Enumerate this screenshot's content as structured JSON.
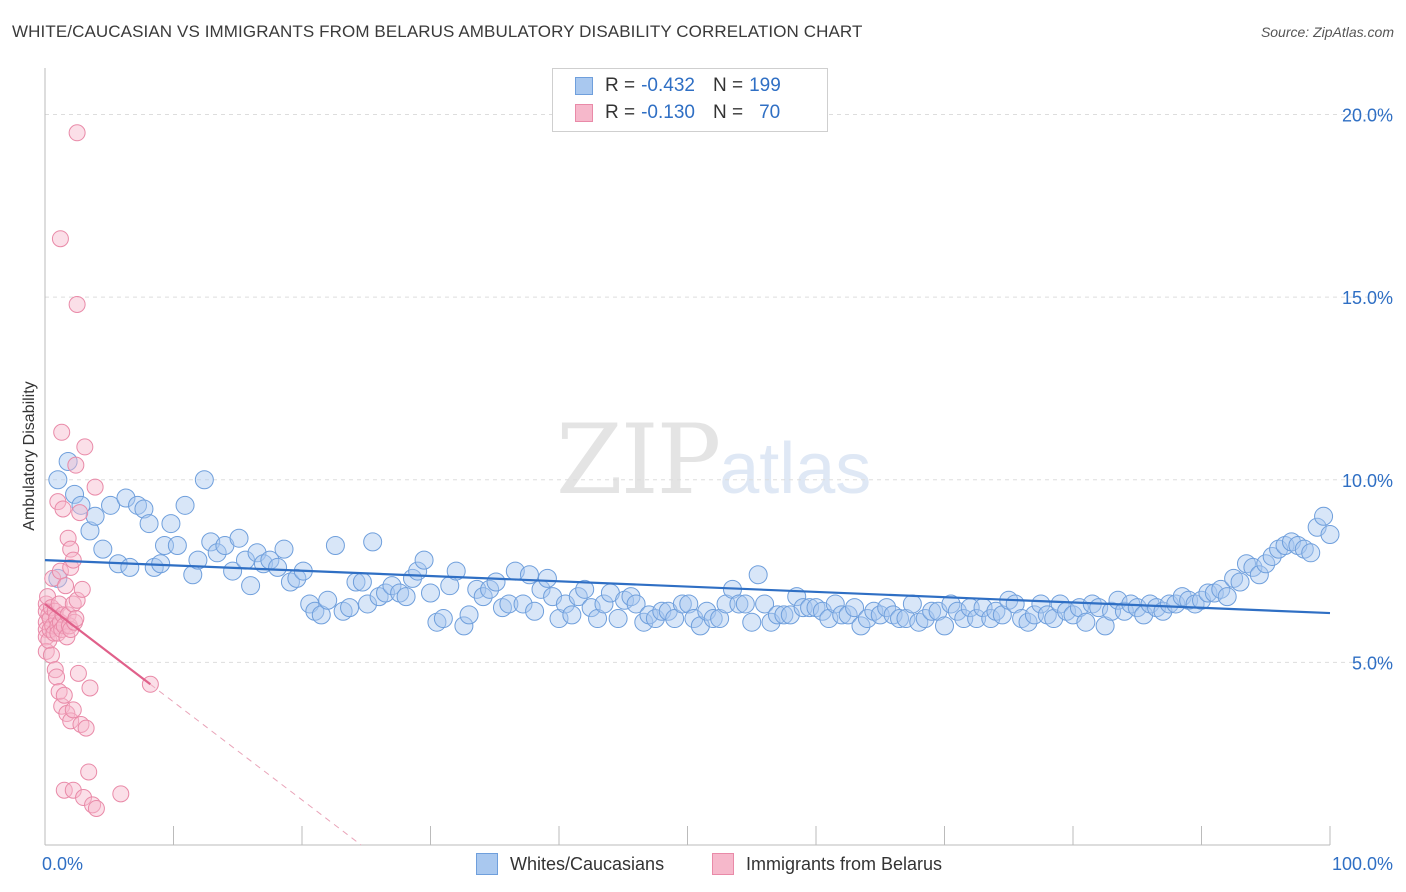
{
  "title": "WHITE/CAUCASIAN VS IMMIGRANTS FROM BELARUS AMBULATORY DISABILITY CORRELATION CHART",
  "source": "Source: ZipAtlas.com",
  "watermark": {
    "zip": "ZIP",
    "atlas": "atlas"
  },
  "legend": {
    "rows": [
      {
        "r_label": "R =",
        "r_value": "-0.432",
        "n_label": "N =",
        "n_value": "199"
      },
      {
        "r_label": "R =",
        "r_value": "-0.130",
        "n_label": "N =",
        "n_value": "70"
      }
    ]
  },
  "colors": {
    "blue_fill": "#a9c8ef",
    "blue_stroke": "#6f9fdc",
    "blue_line": "#2f6fc4",
    "pink_fill": "#f6b8cb",
    "pink_stroke": "#e98aa8",
    "pink_line": "#e0608a",
    "axis_text": "#2f6fc4",
    "grid": "#dddddd"
  },
  "chart_data": {
    "type": "scatter",
    "title": "WHITE/CAUCASIAN VS IMMIGRANTS FROM BELARUS AMBULATORY DISABILITY CORRELATION CHART",
    "xlabel": "",
    "ylabel": "Ambulatory Disability",
    "xlim": [
      0,
      100
    ],
    "ylim": [
      0,
      21
    ],
    "x_tick_labels": [
      "0.0%",
      "100.0%"
    ],
    "y_ticks": [
      5,
      10,
      15,
      20
    ],
    "y_tick_labels": [
      "5.0%",
      "10.0%",
      "15.0%",
      "20.0%"
    ],
    "series": [
      {
        "name": "Whites/Caucasians",
        "r": -0.432,
        "n": 199,
        "trend": {
          "x": [
            0,
            100
          ],
          "y": [
            7.8,
            6.35
          ]
        },
        "points": [
          [
            1,
            7.3
          ],
          [
            1,
            10.0
          ],
          [
            1.8,
            10.5
          ],
          [
            2.3,
            9.6
          ],
          [
            2.8,
            9.3
          ],
          [
            3.5,
            8.6
          ],
          [
            3.9,
            9.0
          ],
          [
            4.5,
            8.1
          ],
          [
            5.1,
            9.3
          ],
          [
            5.7,
            7.7
          ],
          [
            6.3,
            9.5
          ],
          [
            6.6,
            7.6
          ],
          [
            7.2,
            9.3
          ],
          [
            7.7,
            9.2
          ],
          [
            8.1,
            8.8
          ],
          [
            8.5,
            7.6
          ],
          [
            9.0,
            7.7
          ],
          [
            9.3,
            8.2
          ],
          [
            9.8,
            8.8
          ],
          [
            10.3,
            8.2
          ],
          [
            10.9,
            9.3
          ],
          [
            11.5,
            7.4
          ],
          [
            11.9,
            7.8
          ],
          [
            12.4,
            10.0
          ],
          [
            12.9,
            8.3
          ],
          [
            13.4,
            8.0
          ],
          [
            14.0,
            8.2
          ],
          [
            14.6,
            7.5
          ],
          [
            15.1,
            8.4
          ],
          [
            15.6,
            7.8
          ],
          [
            16.0,
            7.1
          ],
          [
            16.5,
            8.0
          ],
          [
            17.0,
            7.7
          ],
          [
            17.5,
            7.8
          ],
          [
            18.1,
            7.6
          ],
          [
            18.6,
            8.1
          ],
          [
            19.1,
            7.2
          ],
          [
            19.6,
            7.3
          ],
          [
            20.1,
            7.5
          ],
          [
            20.6,
            6.6
          ],
          [
            21.0,
            6.4
          ],
          [
            21.5,
            6.3
          ],
          [
            22.0,
            6.7
          ],
          [
            22.6,
            8.2
          ],
          [
            23.2,
            6.4
          ],
          [
            23.7,
            6.5
          ],
          [
            24.2,
            7.2
          ],
          [
            24.7,
            7.2
          ],
          [
            25.1,
            6.6
          ],
          [
            25.5,
            8.3
          ],
          [
            26.0,
            6.8
          ],
          [
            26.5,
            6.9
          ],
          [
            27.0,
            7.1
          ],
          [
            27.6,
            6.9
          ],
          [
            28.1,
            6.8
          ],
          [
            28.6,
            7.3
          ],
          [
            29.0,
            7.5
          ],
          [
            29.5,
            7.8
          ],
          [
            30.0,
            6.9
          ],
          [
            30.5,
            6.1
          ],
          [
            31.0,
            6.2
          ],
          [
            31.5,
            7.1
          ],
          [
            32.0,
            7.5
          ],
          [
            32.6,
            6.0
          ],
          [
            33.0,
            6.3
          ],
          [
            33.6,
            7.0
          ],
          [
            34.1,
            6.8
          ],
          [
            34.6,
            7.0
          ],
          [
            35.1,
            7.2
          ],
          [
            35.6,
            6.5
          ],
          [
            36.1,
            6.6
          ],
          [
            36.6,
            7.5
          ],
          [
            37.2,
            6.6
          ],
          [
            37.7,
            7.4
          ],
          [
            38.1,
            6.4
          ],
          [
            38.6,
            7.0
          ],
          [
            39.1,
            7.3
          ],
          [
            39.5,
            6.8
          ],
          [
            40.0,
            6.2
          ],
          [
            40.5,
            6.6
          ],
          [
            41.0,
            6.3
          ],
          [
            41.5,
            6.8
          ],
          [
            42.0,
            7.0
          ],
          [
            42.5,
            6.5
          ],
          [
            43.0,
            6.2
          ],
          [
            43.5,
            6.6
          ],
          [
            44.0,
            6.9
          ],
          [
            44.6,
            6.2
          ],
          [
            45.1,
            6.7
          ],
          [
            45.6,
            6.8
          ],
          [
            46.0,
            6.6
          ],
          [
            46.6,
            6.1
          ],
          [
            47.0,
            6.3
          ],
          [
            47.5,
            6.2
          ],
          [
            48.0,
            6.4
          ],
          [
            48.5,
            6.4
          ],
          [
            49.0,
            6.2
          ],
          [
            49.6,
            6.6
          ],
          [
            50.1,
            6.6
          ],
          [
            50.5,
            6.2
          ],
          [
            51.0,
            6.0
          ],
          [
            51.5,
            6.4
          ],
          [
            52.0,
            6.2
          ],
          [
            52.5,
            6.2
          ],
          [
            53.0,
            6.6
          ],
          [
            53.5,
            7.0
          ],
          [
            54.0,
            6.6
          ],
          [
            54.5,
            6.6
          ],
          [
            55.0,
            6.1
          ],
          [
            55.5,
            7.4
          ],
          [
            56.0,
            6.6
          ],
          [
            56.5,
            6.1
          ],
          [
            57.0,
            6.3
          ],
          [
            57.5,
            6.3
          ],
          [
            58.0,
            6.3
          ],
          [
            58.5,
            6.8
          ],
          [
            59.0,
            6.5
          ],
          [
            59.5,
            6.5
          ],
          [
            60.0,
            6.5
          ],
          [
            60.5,
            6.4
          ],
          [
            61.0,
            6.2
          ],
          [
            61.5,
            6.6
          ],
          [
            62.0,
            6.3
          ],
          [
            62.5,
            6.3
          ],
          [
            63.0,
            6.5
          ],
          [
            63.5,
            6.0
          ],
          [
            64.0,
            6.2
          ],
          [
            64.5,
            6.4
          ],
          [
            65.0,
            6.3
          ],
          [
            65.5,
            6.5
          ],
          [
            66.0,
            6.3
          ],
          [
            66.5,
            6.2
          ],
          [
            67.0,
            6.2
          ],
          [
            67.5,
            6.6
          ],
          [
            68.0,
            6.1
          ],
          [
            68.5,
            6.2
          ],
          [
            69.0,
            6.4
          ],
          [
            69.5,
            6.4
          ],
          [
            70.0,
            6.0
          ],
          [
            70.5,
            6.6
          ],
          [
            71.0,
            6.4
          ],
          [
            71.5,
            6.2
          ],
          [
            72.0,
            6.5
          ],
          [
            72.5,
            6.2
          ],
          [
            73.0,
            6.5
          ],
          [
            73.6,
            6.2
          ],
          [
            74.0,
            6.4
          ],
          [
            74.5,
            6.3
          ],
          [
            75.0,
            6.7
          ],
          [
            75.5,
            6.6
          ],
          [
            76.0,
            6.2
          ],
          [
            76.5,
            6.1
          ],
          [
            77.0,
            6.3
          ],
          [
            77.5,
            6.6
          ],
          [
            78.0,
            6.3
          ],
          [
            78.5,
            6.2
          ],
          [
            79.0,
            6.6
          ],
          [
            79.5,
            6.4
          ],
          [
            80.0,
            6.3
          ],
          [
            80.5,
            6.5
          ],
          [
            81.0,
            6.1
          ],
          [
            81.5,
            6.6
          ],
          [
            82.0,
            6.5
          ],
          [
            82.5,
            6.0
          ],
          [
            83.0,
            6.4
          ],
          [
            83.5,
            6.7
          ],
          [
            84.0,
            6.4
          ],
          [
            84.5,
            6.6
          ],
          [
            85.0,
            6.5
          ],
          [
            85.5,
            6.3
          ],
          [
            86.0,
            6.6
          ],
          [
            86.5,
            6.5
          ],
          [
            87.0,
            6.4
          ],
          [
            87.5,
            6.6
          ],
          [
            88.0,
            6.6
          ],
          [
            88.5,
            6.8
          ],
          [
            89.0,
            6.7
          ],
          [
            89.5,
            6.6
          ],
          [
            90.0,
            6.7
          ],
          [
            90.5,
            6.9
          ],
          [
            91.0,
            6.9
          ],
          [
            91.5,
            7.0
          ],
          [
            92.0,
            6.8
          ],
          [
            92.5,
            7.3
          ],
          [
            93.0,
            7.2
          ],
          [
            93.5,
            7.7
          ],
          [
            94.0,
            7.6
          ],
          [
            94.5,
            7.4
          ],
          [
            95.0,
            7.7
          ],
          [
            95.5,
            7.9
          ],
          [
            96.0,
            8.1
          ],
          [
            96.5,
            8.2
          ],
          [
            97.0,
            8.3
          ],
          [
            97.5,
            8.2
          ],
          [
            98.0,
            8.1
          ],
          [
            98.5,
            8.0
          ],
          [
            99.0,
            8.7
          ],
          [
            99.5,
            9.0
          ],
          [
            100,
            8.5
          ]
        ]
      },
      {
        "name": "Immigrants from Belarus",
        "r": -0.13,
        "n": 70,
        "trend": {
          "x": [
            0,
            8.2
          ],
          "y": [
            6.6,
            4.4
          ]
        },
        "points": [
          [
            0.1,
            6.6
          ],
          [
            0.1,
            6.4
          ],
          [
            0.1,
            6.1
          ],
          [
            0.1,
            5.9
          ],
          [
            0.1,
            5.7
          ],
          [
            0.1,
            5.3
          ],
          [
            0.2,
            6.8
          ],
          [
            0.3,
            6.3
          ],
          [
            0.3,
            5.6
          ],
          [
            0.4,
            6.2
          ],
          [
            0.4,
            5.9
          ],
          [
            0.5,
            6.5
          ],
          [
            0.5,
            5.2
          ],
          [
            0.6,
            7.3
          ],
          [
            0.6,
            6.0
          ],
          [
            0.7,
            5.8
          ],
          [
            0.8,
            6.4
          ],
          [
            0.9,
            6.2
          ],
          [
            1.0,
            6.0
          ],
          [
            1.0,
            5.8
          ],
          [
            1.1,
            6.6
          ],
          [
            1.2,
            7.5
          ],
          [
            1.2,
            6.1
          ],
          [
            1.3,
            5.9
          ],
          [
            1.4,
            6.3
          ],
          [
            1.5,
            6.0
          ],
          [
            1.6,
            7.1
          ],
          [
            1.7,
            5.7
          ],
          [
            1.8,
            6.3
          ],
          [
            1.9,
            6.0
          ],
          [
            2.0,
            7.6
          ],
          [
            2.0,
            5.9
          ],
          [
            2.2,
            6.6
          ],
          [
            2.3,
            6.1
          ],
          [
            2.4,
            6.2
          ],
          [
            2.5,
            6.7
          ],
          [
            0.8,
            4.8
          ],
          [
            0.9,
            4.6
          ],
          [
            1.1,
            4.2
          ],
          [
            1.3,
            3.8
          ],
          [
            1.5,
            4.1
          ],
          [
            1.7,
            3.6
          ],
          [
            2.0,
            3.4
          ],
          [
            2.2,
            3.7
          ],
          [
            2.6,
            4.7
          ],
          [
            2.8,
            3.3
          ],
          [
            3.2,
            3.2
          ],
          [
            3.5,
            4.3
          ],
          [
            1.0,
            9.4
          ],
          [
            1.4,
            9.2
          ],
          [
            1.8,
            8.4
          ],
          [
            2.0,
            8.1
          ],
          [
            2.2,
            7.8
          ],
          [
            2.4,
            10.4
          ],
          [
            2.9,
            7.0
          ],
          [
            3.1,
            10.9
          ],
          [
            3.9,
            9.8
          ],
          [
            1.3,
            11.3
          ],
          [
            2.7,
            9.1
          ],
          [
            1.2,
            16.6
          ],
          [
            2.5,
            14.8
          ],
          [
            2.5,
            19.5
          ],
          [
            3.4,
            2.0
          ],
          [
            1.5,
            1.5
          ],
          [
            2.2,
            1.5
          ],
          [
            3.0,
            1.3
          ],
          [
            3.7,
            1.1
          ],
          [
            4.0,
            1.0
          ],
          [
            5.9,
            1.4
          ],
          [
            8.2,
            4.4
          ]
        ]
      }
    ]
  },
  "bottom_legend": [
    {
      "label": "Whites/Caucasians"
    },
    {
      "label": "Immigrants from Belarus"
    }
  ]
}
